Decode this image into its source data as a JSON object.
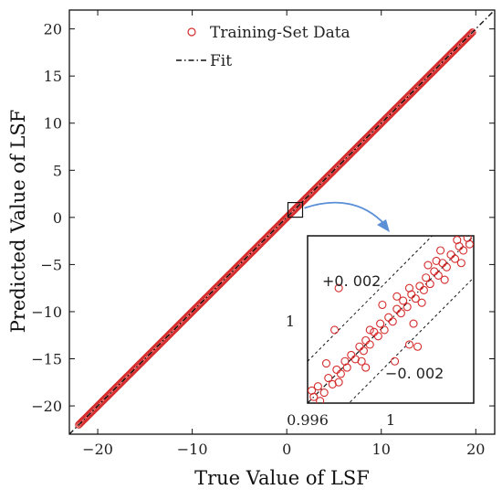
{
  "chart_data": {
    "type": "scatter",
    "xlabel": "True Value of LSF",
    "ylabel": "Predicted Value of LSF",
    "xlim": [
      -23,
      22
    ],
    "ylim": [
      -23,
      22
    ],
    "xticks": [
      -20,
      -10,
      0,
      10,
      20
    ],
    "yticks": [
      -20,
      -15,
      -10,
      -5,
      0,
      5,
      10,
      15,
      20
    ],
    "xtick_labels": [
      "−20",
      "−10",
      "0",
      "10",
      "20"
    ],
    "ytick_labels": [
      "−20",
      "−15",
      "−10",
      "−5",
      "0",
      "5",
      "10",
      "15",
      "20"
    ],
    "grid": false,
    "legend_position": "top-center",
    "series": [
      {
        "name": "Training-Set Data",
        "kind": "markers",
        "color": "#d62b2b",
        "x_range": [
          -22,
          19.7
        ],
        "note_values": "points lie on y = x"
      },
      {
        "name": "Fit",
        "kind": "line",
        "style": "dash-dot",
        "color": "#111111",
        "x": [
          -23,
          22
        ],
        "y": [
          -23,
          22
        ]
      }
    ],
    "inset": {
      "zoom_center": [
        0.9,
        0.8
      ],
      "xlim": [
        0.996,
        1.004
      ],
      "ylim": [
        0.996,
        1.004
      ],
      "xtick_labels": [
        "0.996",
        "1"
      ],
      "ytick_labels": [
        "1"
      ],
      "bounds": [
        {
          "label": "+0. 002",
          "offset": 0.002
        },
        {
          "label": "−0. 002",
          "offset": -0.002
        }
      ],
      "points": [
        [
          0.9963,
          0.9963
        ],
        [
          0.9965,
          0.9968
        ],
        [
          0.9968,
          0.9965
        ],
        [
          0.997,
          0.9972
        ],
        [
          0.9972,
          0.9969
        ],
        [
          0.9974,
          0.9976
        ],
        [
          0.9976,
          0.9974
        ],
        [
          0.9978,
          0.998
        ],
        [
          0.9979,
          0.9977
        ],
        [
          0.9981,
          0.9983
        ],
        [
          0.9983,
          0.9981
        ],
        [
          0.9985,
          0.9987
        ],
        [
          0.9987,
          0.9985
        ],
        [
          0.9988,
          0.999
        ],
        [
          0.999,
          0.9988
        ],
        [
          0.9992,
          0.9994
        ],
        [
          0.9994,
          0.9992
        ],
        [
          0.9995,
          0.9998
        ],
        [
          0.9997,
          0.9995
        ],
        [
          0.9999,
          1.0001
        ],
        [
          1.0001,
          0.9999
        ],
        [
          1.0003,
          1.0005
        ],
        [
          1.0005,
          1.0003
        ],
        [
          1.0006,
          1.0009
        ],
        [
          1.0008,
          1.0006
        ],
        [
          1.001,
          1.0012
        ],
        [
          1.0012,
          1.001
        ],
        [
          1.0014,
          1.0016
        ],
        [
          1.0016,
          1.0014
        ],
        [
          1.0017,
          1.002
        ],
        [
          1.0019,
          1.0017
        ],
        [
          1.0021,
          1.0023
        ],
        [
          1.0023,
          1.0021
        ],
        [
          1.0025,
          1.0027
        ],
        [
          1.0027,
          1.0025
        ],
        [
          1.0029,
          1.0031
        ],
        [
          1.0031,
          1.0029
        ],
        [
          1.0033,
          1.0035
        ],
        [
          1.0035,
          1.0033
        ],
        [
          1.0037,
          1.0039
        ],
        [
          0.9975,
          0.997
        ],
        [
          0.999,
          0.9995
        ],
        [
          1.0015,
          1.0008
        ],
        [
          1.0032,
          1.0038
        ],
        [
          1.0022,
          1.0028
        ],
        [
          0.9966,
          0.9961
        ],
        [
          1.0038,
          1.0036
        ],
        [
          1.0009,
          1.0015
        ],
        [
          0.9986,
          0.998
        ],
        [
          1.0026,
          1.0019
        ],
        [
          0.9969,
          0.9979
        ],
        [
          1.0003,
          1.0011
        ],
        [
          1.0018,
          1.0026
        ],
        [
          0.9996,
          1.0007
        ],
        [
          1.0011,
          0.9998
        ],
        [
          0.9973,
          0.9995
        ],
        [
          0.9988,
          0.9977
        ],
        [
          1.0024,
          1.0033
        ],
        [
          1.0034,
          1.0027
        ],
        [
          0.9962,
          0.9966
        ],
        [
          0.9975,
          1.0015
        ],
        [
          1.0009,
          0.9988
        ],
        [
          1.0013,
          0.9987
        ],
        [
          1.0002,
          0.998
        ]
      ]
    }
  }
}
